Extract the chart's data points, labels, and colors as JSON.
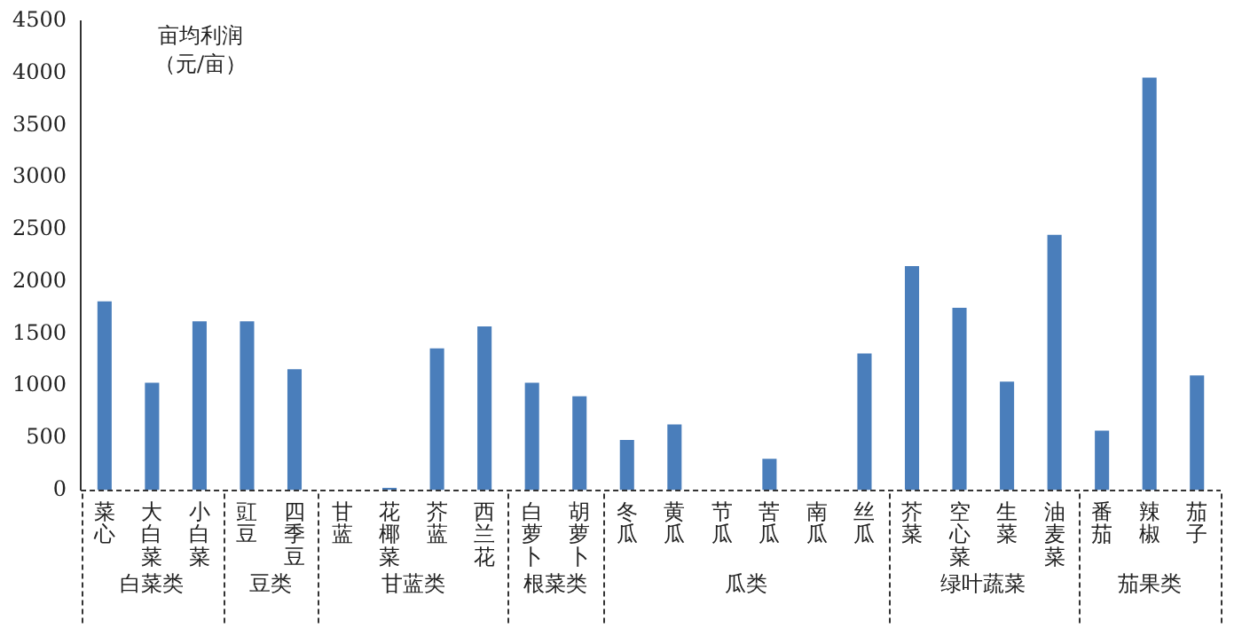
{
  "chart_data": {
    "type": "bar",
    "ylabel": "亩均利润（元/亩）",
    "categories": [
      "菜心",
      "大白菜",
      "小白菜",
      "豇豆",
      "四季豆",
      "甘蓝",
      "花椰菜",
      "芥蓝",
      "西兰花",
      "白萝卜",
      "胡萝卜",
      "冬瓜",
      "黄瓜",
      "节瓜",
      "苦瓜",
      "南瓜",
      "丝瓜",
      "芥菜",
      "空心菜",
      "生菜",
      "油麦菜",
      "番茄",
      "辣椒",
      "茄子"
    ],
    "values": [
      1810,
      1030,
      1620,
      1620,
      1160,
      0,
      20,
      1360,
      1570,
      1030,
      900,
      480,
      630,
      0,
      300,
      0,
      1310,
      2150,
      1750,
      1040,
      2450,
      570,
      3960,
      1100
    ],
    "color": "#4a7ebb",
    "ylim": [
      0,
      4500
    ],
    "yticks": [
      0,
      500,
      1000,
      1500,
      2000,
      2500,
      3000,
      3500,
      4000,
      4500
    ],
    "grid": false,
    "legend": false,
    "annotations": [
      "白菜类",
      "豆类",
      "甘蓝类",
      "根菜类",
      "瓜类",
      "绿叶蔬菜",
      "茄果类"
    ]
  }
}
